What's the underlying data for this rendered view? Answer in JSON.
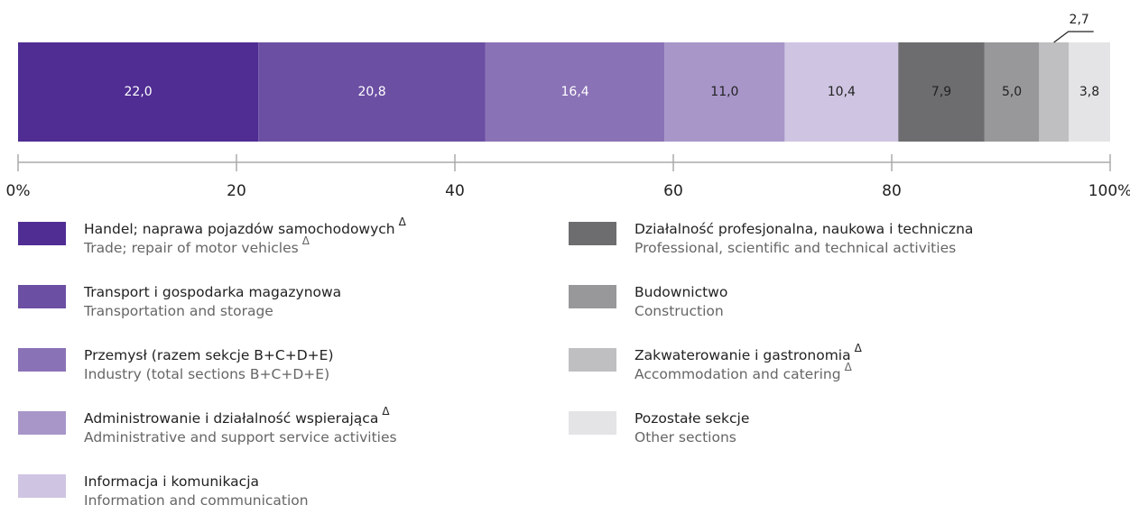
{
  "chart_data": {
    "type": "stacked-bar-100",
    "xlim": [
      0,
      100
    ],
    "xticks": [
      {
        "value": 0,
        "label": "0%"
      },
      20,
      40,
      60,
      80,
      {
        "value": 100,
        "label": "100%"
      }
    ],
    "series": [
      {
        "name": "Handel; naprawa pojazdów samochodowych",
        "name_mark": "Δ",
        "name_en": "Trade; repair of motor vehicles",
        "name_en_mark": "Δ",
        "color": "#4f2d93",
        "label_color": "#ffffff",
        "values": [
          22.0
        ],
        "value_labels": [
          "22,0"
        ]
      },
      {
        "name": "Transport i gospodarka magazynowa",
        "name_en": "Transportation and storage",
        "color": "#6b4fa3",
        "label_color": "#ffffff",
        "values": [
          20.8
        ],
        "value_labels": [
          "20,8"
        ]
      },
      {
        "name": "Przemysł (razem sekcje B+C+D+E)",
        "name_en": "Industry (total sections B+C+D+E)",
        "color": "#8a72b6",
        "label_color": "#ffffff",
        "values": [
          16.4
        ],
        "value_labels": [
          "16,4"
        ]
      },
      {
        "name": "Administrowanie i działalność wspierająca",
        "name_mark": "Δ",
        "name_en": "Administrative and support service activities",
        "color": "#a896c9",
        "label_color": "#222222",
        "values": [
          11.0
        ],
        "value_labels": [
          "11,0"
        ]
      },
      {
        "name": "Informacja i komunikacja",
        "name_en": "Information and communication",
        "color": "#cfc5e2",
        "label_color": "#222222",
        "values": [
          10.4
        ],
        "value_labels": [
          "10,4"
        ]
      },
      {
        "name": "Działalność profesjonalna, naukowa i techniczna",
        "name_en": "Professional, scientific and technical activities",
        "color": "#6d6d70",
        "label_color": "#222222",
        "values": [
          7.9
        ],
        "value_labels": [
          "7,9"
        ]
      },
      {
        "name": "Budownictwo",
        "name_en": "Construction",
        "color": "#98989b",
        "label_color": "#222222",
        "values": [
          5.0
        ],
        "value_labels": [
          "5,0"
        ]
      },
      {
        "name": "Zakwaterowanie i gastronomia",
        "name_mark": "Δ",
        "name_en": "Accommodation and catering",
        "name_en_mark": "Δ",
        "color": "#bfbfc1",
        "label_color": "#222222",
        "values": [
          2.7
        ],
        "value_labels": [
          "2,7"
        ]
      },
      {
        "name": "Pozostałe sekcje",
        "name_en": "Other sections",
        "color": "#e4e4e6",
        "label_color": "#222222",
        "values": [
          3.8
        ],
        "value_labels": [
          "3,8"
        ]
      }
    ]
  }
}
